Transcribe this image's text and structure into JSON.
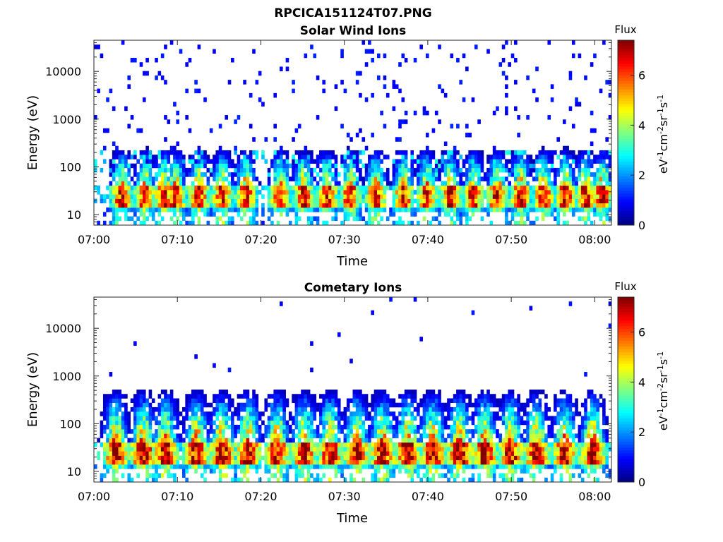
{
  "figure_title": "RPCICA151124T07.PNG",
  "chart_data": [
    {
      "type": "heatmap",
      "title": "Solar Wind Ions",
      "xlabel": "Time",
      "ylabel": "Energy (eV)",
      "x_ticks": [
        "07:00",
        "07:10",
        "07:20",
        "07:30",
        "07:40",
        "07:50",
        "08:00"
      ],
      "x_range": [
        "07:00",
        "08:02"
      ],
      "y_scale": "log",
      "y_ticks": [
        10,
        100,
        1000,
        10000
      ],
      "y_tick_labels": [
        "10",
        "100",
        "1000",
        "10000"
      ],
      "y_range": [
        6,
        45000
      ],
      "colorbar": {
        "label": "eV-1cm-2sr-1s-1",
        "title": "Flux",
        "range": [
          0,
          7.4
        ],
        "ticks": [
          0,
          2,
          4,
          6
        ],
        "colormap": "jet"
      },
      "bursts_minutes": [
        3.3,
        6.1,
        8.4,
        9.8,
        12.6,
        15.4,
        18.2,
        22.3,
        25.1,
        27.9,
        30.7,
        33.8,
        37.1,
        39.9,
        42.7,
        45.5,
        48.3,
        51.1,
        53.9,
        56.5,
        58.9,
        60.9
      ],
      "peak_energy_eV": [
        15,
        35
      ],
      "peak_flux": 6.5,
      "background": "sparse counts 100–30000 eV, flux about 1"
    },
    {
      "type": "heatmap",
      "title": "Cometary Ions",
      "xlabel": "Time",
      "ylabel": "Energy (eV)",
      "x_ticks": [
        "07:00",
        "07:10",
        "07:20",
        "07:30",
        "07:40",
        "07:50",
        "08:00"
      ],
      "x_range": [
        "07:00",
        "08:02"
      ],
      "y_scale": "log",
      "y_ticks": [
        10,
        100,
        1000,
        10000
      ],
      "y_tick_labels": [
        "10",
        "100",
        "1000",
        "10000"
      ],
      "y_range": [
        6,
        45000
      ],
      "colorbar": {
        "label": "eV-1cm-2sr-1s-1",
        "title": "Flux",
        "range": [
          0,
          7.4
        ],
        "ticks": [
          0,
          2,
          4,
          6
        ],
        "colormap": "jet"
      },
      "bursts_minutes": [
        2.6,
        5.9,
        8.6,
        12.3,
        15.4,
        18.5,
        21.9,
        25.2,
        28.3,
        31.5,
        34.6,
        37.6,
        40.6,
        43.8,
        46.8,
        49.9,
        53.0,
        56.4,
        59.8
      ],
      "peak_energy_eV": [
        12,
        40
      ],
      "peak_flux": 7.0,
      "background": "isolated counts 1000–20000 eV"
    }
  ]
}
